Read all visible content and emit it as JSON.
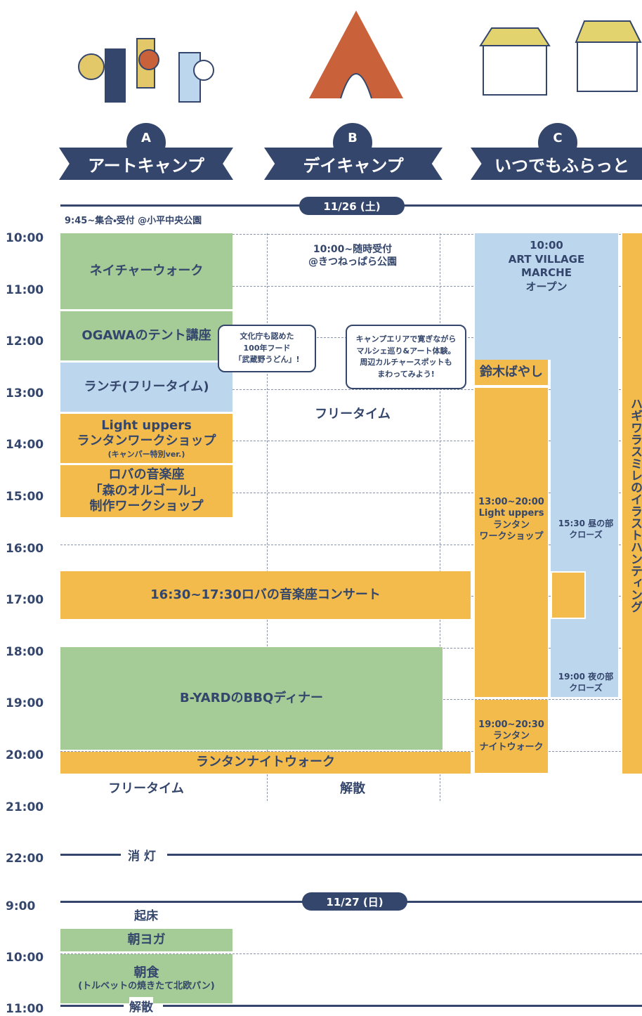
{
  "columns": [
    {
      "letter": "A",
      "name": "アートキャンプ"
    },
    {
      "letter": "B",
      "name": "デイキャンプ"
    },
    {
      "letter": "C",
      "name": "いつでもふらっと"
    }
  ],
  "day1": {
    "date": "11/26 (土)",
    "note": "9:45~集合・受付 @小平中央公園",
    "times": [
      "10:00",
      "11:00",
      "12:00",
      "13:00",
      "14:00",
      "15:00",
      "16:00",
      "17:00",
      "18:00",
      "19:00",
      "20:00",
      "21:00",
      "22:00"
    ],
    "nature_walk": "ネイチャーウォーク",
    "tent": "OGAWAのテント講座",
    "lunch": "ランチ(フリータイム)",
    "light_uppers": [
      "Light uppers",
      "ランタンワークショップ",
      "(キャンパー特別ver.)"
    ],
    "roba_workshop": [
      "ロバの音楽座",
      "「森のオルゴール」",
      "制作ワークショップ"
    ],
    "concert": "16:30~17:30ロバの音楽座コンサート",
    "bbq": "B-YARDのBBQディナー",
    "lantern_night_walk": "ランタンナイトウォーク",
    "a_free": "フリータイム",
    "b_reception": [
      "10:00~随時受付",
      "@きつねっぱら公園"
    ],
    "b_free": "フリータイム",
    "b_dismiss": "解散",
    "bubble_udon": [
      "文化庁も認めた",
      "100年フード",
      "「武蔵野うどん」!"
    ],
    "bubble_marche": [
      "キャンプエリアで寛ぎながら",
      "マルシェ巡り&アート体験。",
      "周辺カルチャースポットも",
      "まわってみよう!"
    ],
    "marche": [
      "10:00",
      "ART VILLAGE MARCHE",
      "オープン"
    ],
    "suzuki": "鈴木ばやし",
    "c_lantern_workshop": [
      "13:00~20:00",
      "Light uppers",
      "ランタン",
      "ワークショップ"
    ],
    "close_day": [
      "15:30 昼の部",
      "クローズ"
    ],
    "close_night": [
      "19:00 夜の部",
      "クローズ"
    ],
    "c_night_walk": [
      "19:00~20:30",
      "ランタン",
      "ナイトウォーク"
    ],
    "illustration_hunting": "ハギワラスミレのイラストハンティング",
    "lights_out": "消 灯"
  },
  "day2": {
    "date": "11/27 (日)",
    "times": [
      "9:00",
      "10:00",
      "11:00"
    ],
    "wake": "起床",
    "yoga": "朝ヨガ",
    "breakfast": [
      "朝食",
      "(トルベットの焼きたて北欧パン)"
    ],
    "dismiss": "解散"
  }
}
